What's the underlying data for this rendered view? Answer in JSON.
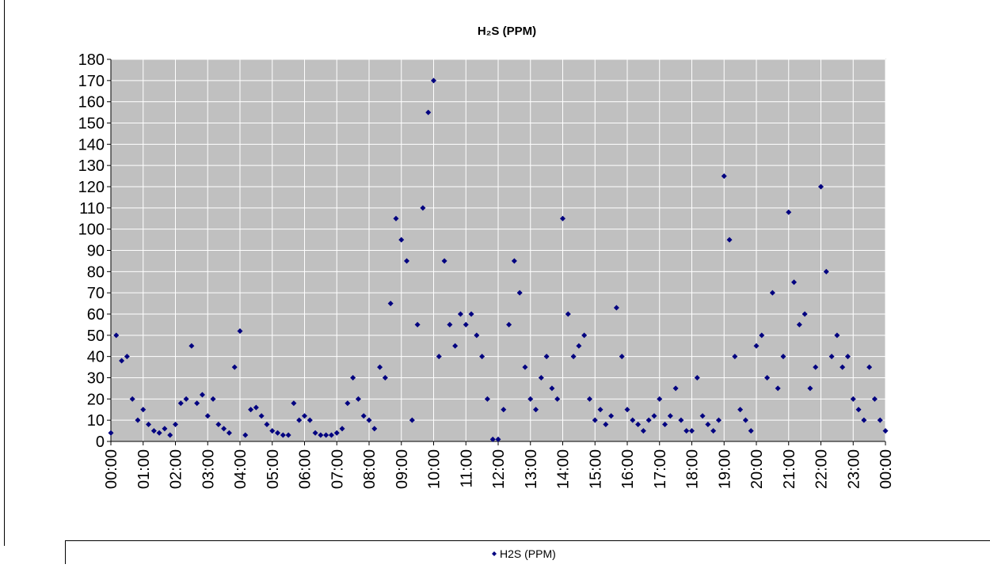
{
  "chart_data": {
    "type": "scatter",
    "title": "H₂S (PPM)",
    "x": [
      0,
      10,
      20,
      30,
      40,
      50,
      60,
      70,
      80,
      90,
      100,
      110,
      120,
      130,
      140,
      150,
      160,
      170,
      180,
      190,
      200,
      210,
      220,
      230,
      240,
      250,
      260,
      270,
      280,
      290,
      300,
      310,
      320,
      330,
      340,
      350,
      360,
      370,
      380,
      390,
      400,
      410,
      420,
      430,
      440,
      450,
      460,
      470,
      480,
      490,
      500,
      510,
      520,
      530,
      540,
      550,
      560,
      570,
      580,
      590,
      600,
      610,
      620,
      630,
      640,
      650,
      660,
      670,
      680,
      690,
      700,
      710,
      720,
      730,
      740,
      750,
      760,
      770,
      780,
      790,
      800,
      810,
      820,
      830,
      840,
      850,
      860,
      870,
      880,
      890,
      900,
      910,
      920,
      930,
      940,
      950,
      960,
      970,
      980,
      990,
      1000,
      1010,
      1020,
      1030,
      1040,
      1050,
      1060,
      1070,
      1080,
      1090,
      1100,
      1110,
      1120,
      1130,
      1140,
      1150,
      1160,
      1170,
      1180,
      1190,
      1200,
      1210,
      1220,
      1230,
      1240,
      1250,
      1260,
      1270,
      1280,
      1290,
      1300,
      1310,
      1320,
      1330,
      1340,
      1350,
      1360,
      1370,
      1380,
      1390,
      1400,
      1410,
      1420,
      1430,
      1440
    ],
    "series": [
      {
        "name": "H2S (PPM)",
        "color": "#000080",
        "values": [
          4,
          50,
          38,
          40,
          20,
          10,
          15,
          8,
          5,
          4,
          6,
          3,
          8,
          18,
          20,
          45,
          18,
          22,
          12,
          20,
          8,
          6,
          4,
          35,
          52,
          3,
          15,
          16,
          12,
          8,
          5,
          4,
          3,
          3,
          18,
          10,
          12,
          10,
          4,
          3,
          3,
          3,
          4,
          6,
          18,
          30,
          20,
          12,
          10,
          6,
          35,
          30,
          65,
          105,
          95,
          85,
          10,
          55,
          110,
          155,
          170,
          40,
          85,
          55,
          45,
          60,
          55,
          60,
          50,
          40,
          20,
          1,
          1,
          15,
          55,
          85,
          70,
          35,
          20,
          15,
          30,
          40,
          25,
          20,
          105,
          60,
          40,
          45,
          50,
          20,
          10,
          15,
          8,
          12,
          63,
          40,
          15,
          10,
          8,
          5,
          10,
          12,
          20,
          8,
          12,
          25,
          10,
          5,
          5,
          30,
          12,
          8,
          5,
          10,
          125,
          95,
          40,
          15,
          10,
          5,
          45,
          50,
          30,
          70,
          25,
          40,
          108,
          75,
          55,
          60,
          25,
          35,
          120,
          80,
          40,
          50,
          35,
          40,
          20,
          15,
          10,
          35,
          20,
          10,
          5
        ]
      }
    ],
    "xlim": [
      0,
      1440
    ],
    "xticks": [
      {
        "value": 0,
        "label": "00:00"
      },
      {
        "value": 60,
        "label": "01:00"
      },
      {
        "value": 120,
        "label": "02:00"
      },
      {
        "value": 180,
        "label": "03:00"
      },
      {
        "value": 240,
        "label": "04:00"
      },
      {
        "value": 300,
        "label": "05:00"
      },
      {
        "value": 360,
        "label": "06:00"
      },
      {
        "value": 420,
        "label": "07:00"
      },
      {
        "value": 480,
        "label": "08:00"
      },
      {
        "value": 540,
        "label": "09:00"
      },
      {
        "value": 600,
        "label": "10:00"
      },
      {
        "value": 660,
        "label": "11:00"
      },
      {
        "value": 720,
        "label": "12:00"
      },
      {
        "value": 780,
        "label": "13:00"
      },
      {
        "value": 840,
        "label": "14:00"
      },
      {
        "value": 900,
        "label": "15:00"
      },
      {
        "value": 960,
        "label": "16:00"
      },
      {
        "value": 1020,
        "label": "17:00"
      },
      {
        "value": 1080,
        "label": "18:00"
      },
      {
        "value": 1140,
        "label": "19:00"
      },
      {
        "value": 1200,
        "label": "20:00"
      },
      {
        "value": 1260,
        "label": "21:00"
      },
      {
        "value": 1320,
        "label": "22:00"
      },
      {
        "value": 1380,
        "label": "23:00"
      },
      {
        "value": 1440,
        "label": "00:00"
      }
    ],
    "ylim": [
      0,
      180
    ],
    "yticks": [
      0,
      10,
      20,
      30,
      40,
      50,
      60,
      70,
      80,
      90,
      100,
      110,
      120,
      130,
      140,
      150,
      160,
      170,
      180
    ],
    "grid": true
  }
}
